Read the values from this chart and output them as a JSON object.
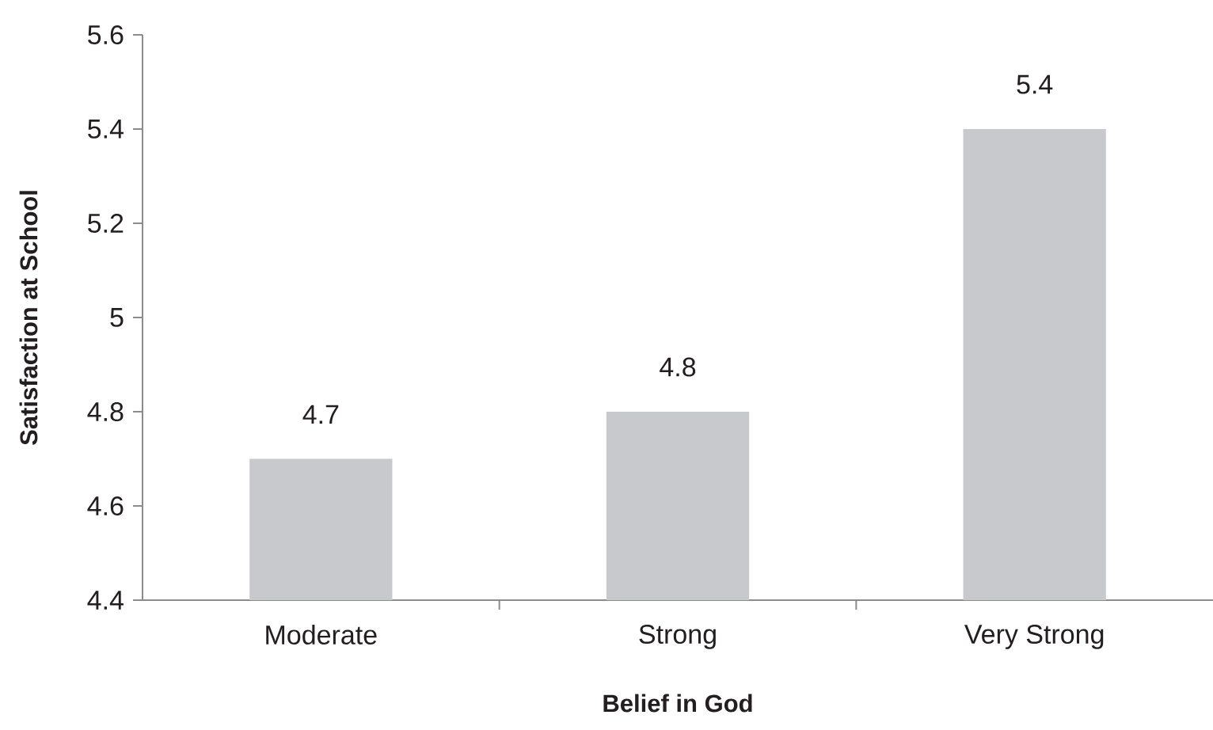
{
  "chart_data": {
    "type": "bar",
    "xlabel": "Belief in God",
    "ylabel": "Satisfaction at School",
    "categories": [
      "Moderate",
      "Strong",
      "Very Strong"
    ],
    "values": [
      4.7,
      4.8,
      5.4
    ],
    "color": "#c8c9cd",
    "ylim": [
      4.4,
      5.6
    ],
    "yticks": [
      4.4,
      4.6,
      4.8,
      5,
      5.2,
      5.4,
      5.6
    ],
    "data_labels": true
  }
}
